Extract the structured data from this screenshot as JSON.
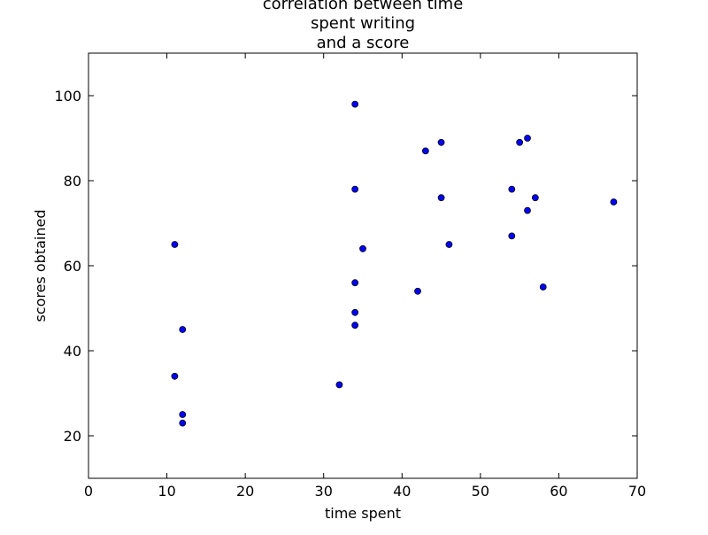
{
  "chart_data": {
    "type": "scatter",
    "title": [
      "correlation between time",
      "spent writing",
      "and a score"
    ],
    "xlabel": "time spent",
    "ylabel": "scores obtained",
    "xlim": [
      0,
      70
    ],
    "ylim": [
      10,
      110
    ],
    "xticks": [
      0,
      10,
      20,
      30,
      40,
      50,
      60,
      70
    ],
    "yticks": [
      20,
      40,
      60,
      80,
      100
    ],
    "grid": false,
    "legend": "none",
    "marker_color": "#0000ff",
    "marker_edge_color": "#000000",
    "series": [
      {
        "points": [
          {
            "x": 11,
            "y": 65
          },
          {
            "x": 11,
            "y": 34
          },
          {
            "x": 12,
            "y": 45
          },
          {
            "x": 12,
            "y": 25
          },
          {
            "x": 12,
            "y": 23
          },
          {
            "x": 32,
            "y": 32
          },
          {
            "x": 34,
            "y": 98
          },
          {
            "x": 34,
            "y": 78
          },
          {
            "x": 34,
            "y": 56
          },
          {
            "x": 34,
            "y": 49
          },
          {
            "x": 34,
            "y": 46
          },
          {
            "x": 35,
            "y": 64
          },
          {
            "x": 42,
            "y": 54
          },
          {
            "x": 43,
            "y": 87
          },
          {
            "x": 45,
            "y": 89
          },
          {
            "x": 45,
            "y": 76
          },
          {
            "x": 46,
            "y": 65
          },
          {
            "x": 54,
            "y": 78
          },
          {
            "x": 54,
            "y": 67
          },
          {
            "x": 55,
            "y": 89
          },
          {
            "x": 56,
            "y": 90
          },
          {
            "x": 56,
            "y": 73
          },
          {
            "x": 57,
            "y": 76
          },
          {
            "x": 58,
            "y": 55
          },
          {
            "x": 67,
            "y": 75
          }
        ]
      }
    ]
  }
}
